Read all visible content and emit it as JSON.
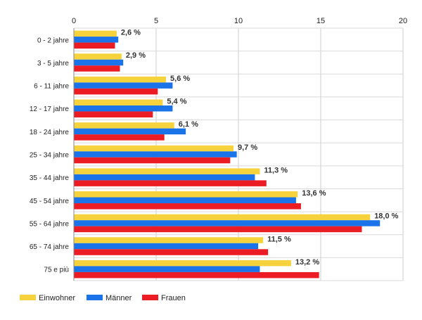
{
  "chart_data": {
    "type": "bar",
    "orientation": "horizontal",
    "title": "",
    "xlabel": "",
    "ylabel": "",
    "xlim": [
      0,
      20
    ],
    "x_ticks": [
      0,
      5,
      10,
      15,
      20
    ],
    "grid": true,
    "legend_position": "bottom-left",
    "categories": [
      "0 - 2 jahre",
      "3 - 5 jahre",
      "6 - 11 jahre",
      "12 - 17 jahre",
      "18 - 24 jahre",
      "25 - 34 jahre",
      "35 - 44 jahre",
      "45 - 54 jahre",
      "55 - 64 jahre",
      "65 - 74 jahre",
      "75 e più"
    ],
    "series": [
      {
        "name": "Einwohner",
        "color": "#f6d33c",
        "values": [
          2.6,
          2.9,
          5.6,
          5.4,
          6.1,
          9.7,
          11.3,
          13.6,
          18.0,
          11.5,
          13.2
        ]
      },
      {
        "name": "Männer",
        "color": "#1a73e8",
        "values": [
          2.7,
          3.0,
          6.0,
          6.0,
          6.8,
          9.9,
          11.0,
          13.5,
          18.6,
          11.2,
          11.3
        ]
      },
      {
        "name": "Frauen",
        "color": "#ec1c24",
        "values": [
          2.5,
          2.8,
          5.1,
          4.8,
          5.5,
          9.5,
          11.7,
          13.8,
          17.5,
          11.8,
          14.9
        ]
      }
    ],
    "data_labels": [
      "2,6 %",
      "2,9 %",
      "5,6 %",
      "5,4 %",
      "6,1 %",
      "9,7 %",
      "11,3 %",
      "13,6 %",
      "18,0 %",
      "11,5 %",
      "13,2 %"
    ]
  }
}
